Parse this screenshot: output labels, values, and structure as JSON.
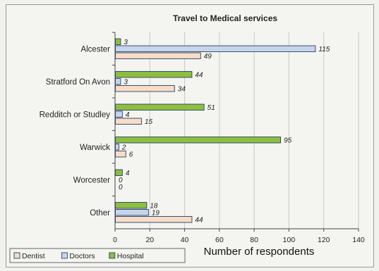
{
  "chart_data": {
    "type": "bar",
    "orientation": "horizontal",
    "title": "Travel to Medical services",
    "xlabel": "Number of respondents",
    "ylabel": "",
    "xlim": [
      0,
      140
    ],
    "xticks": [
      0,
      20,
      40,
      60,
      80,
      100,
      120,
      140
    ],
    "grid": true,
    "legend_position": "bottom-left",
    "categories": [
      "Alcester",
      "Stratford On Avon",
      "Redditch or Studley",
      "Warwick",
      "Worcester",
      "Other"
    ],
    "series": [
      {
        "name": "Hospital",
        "color": "#8cbf3f",
        "values": [
          3,
          44,
          51,
          95,
          4,
          18
        ]
      },
      {
        "name": "Doctors",
        "color": "#c6d6ea",
        "values": [
          115,
          3,
          4,
          2,
          0,
          19
        ]
      },
      {
        "name": "Dentist",
        "color": "#f7dcc6",
        "values": [
          49,
          34,
          15,
          6,
          0,
          44
        ]
      }
    ],
    "legend_order": [
      "Dentist",
      "Doctors",
      "Hospital"
    ]
  }
}
